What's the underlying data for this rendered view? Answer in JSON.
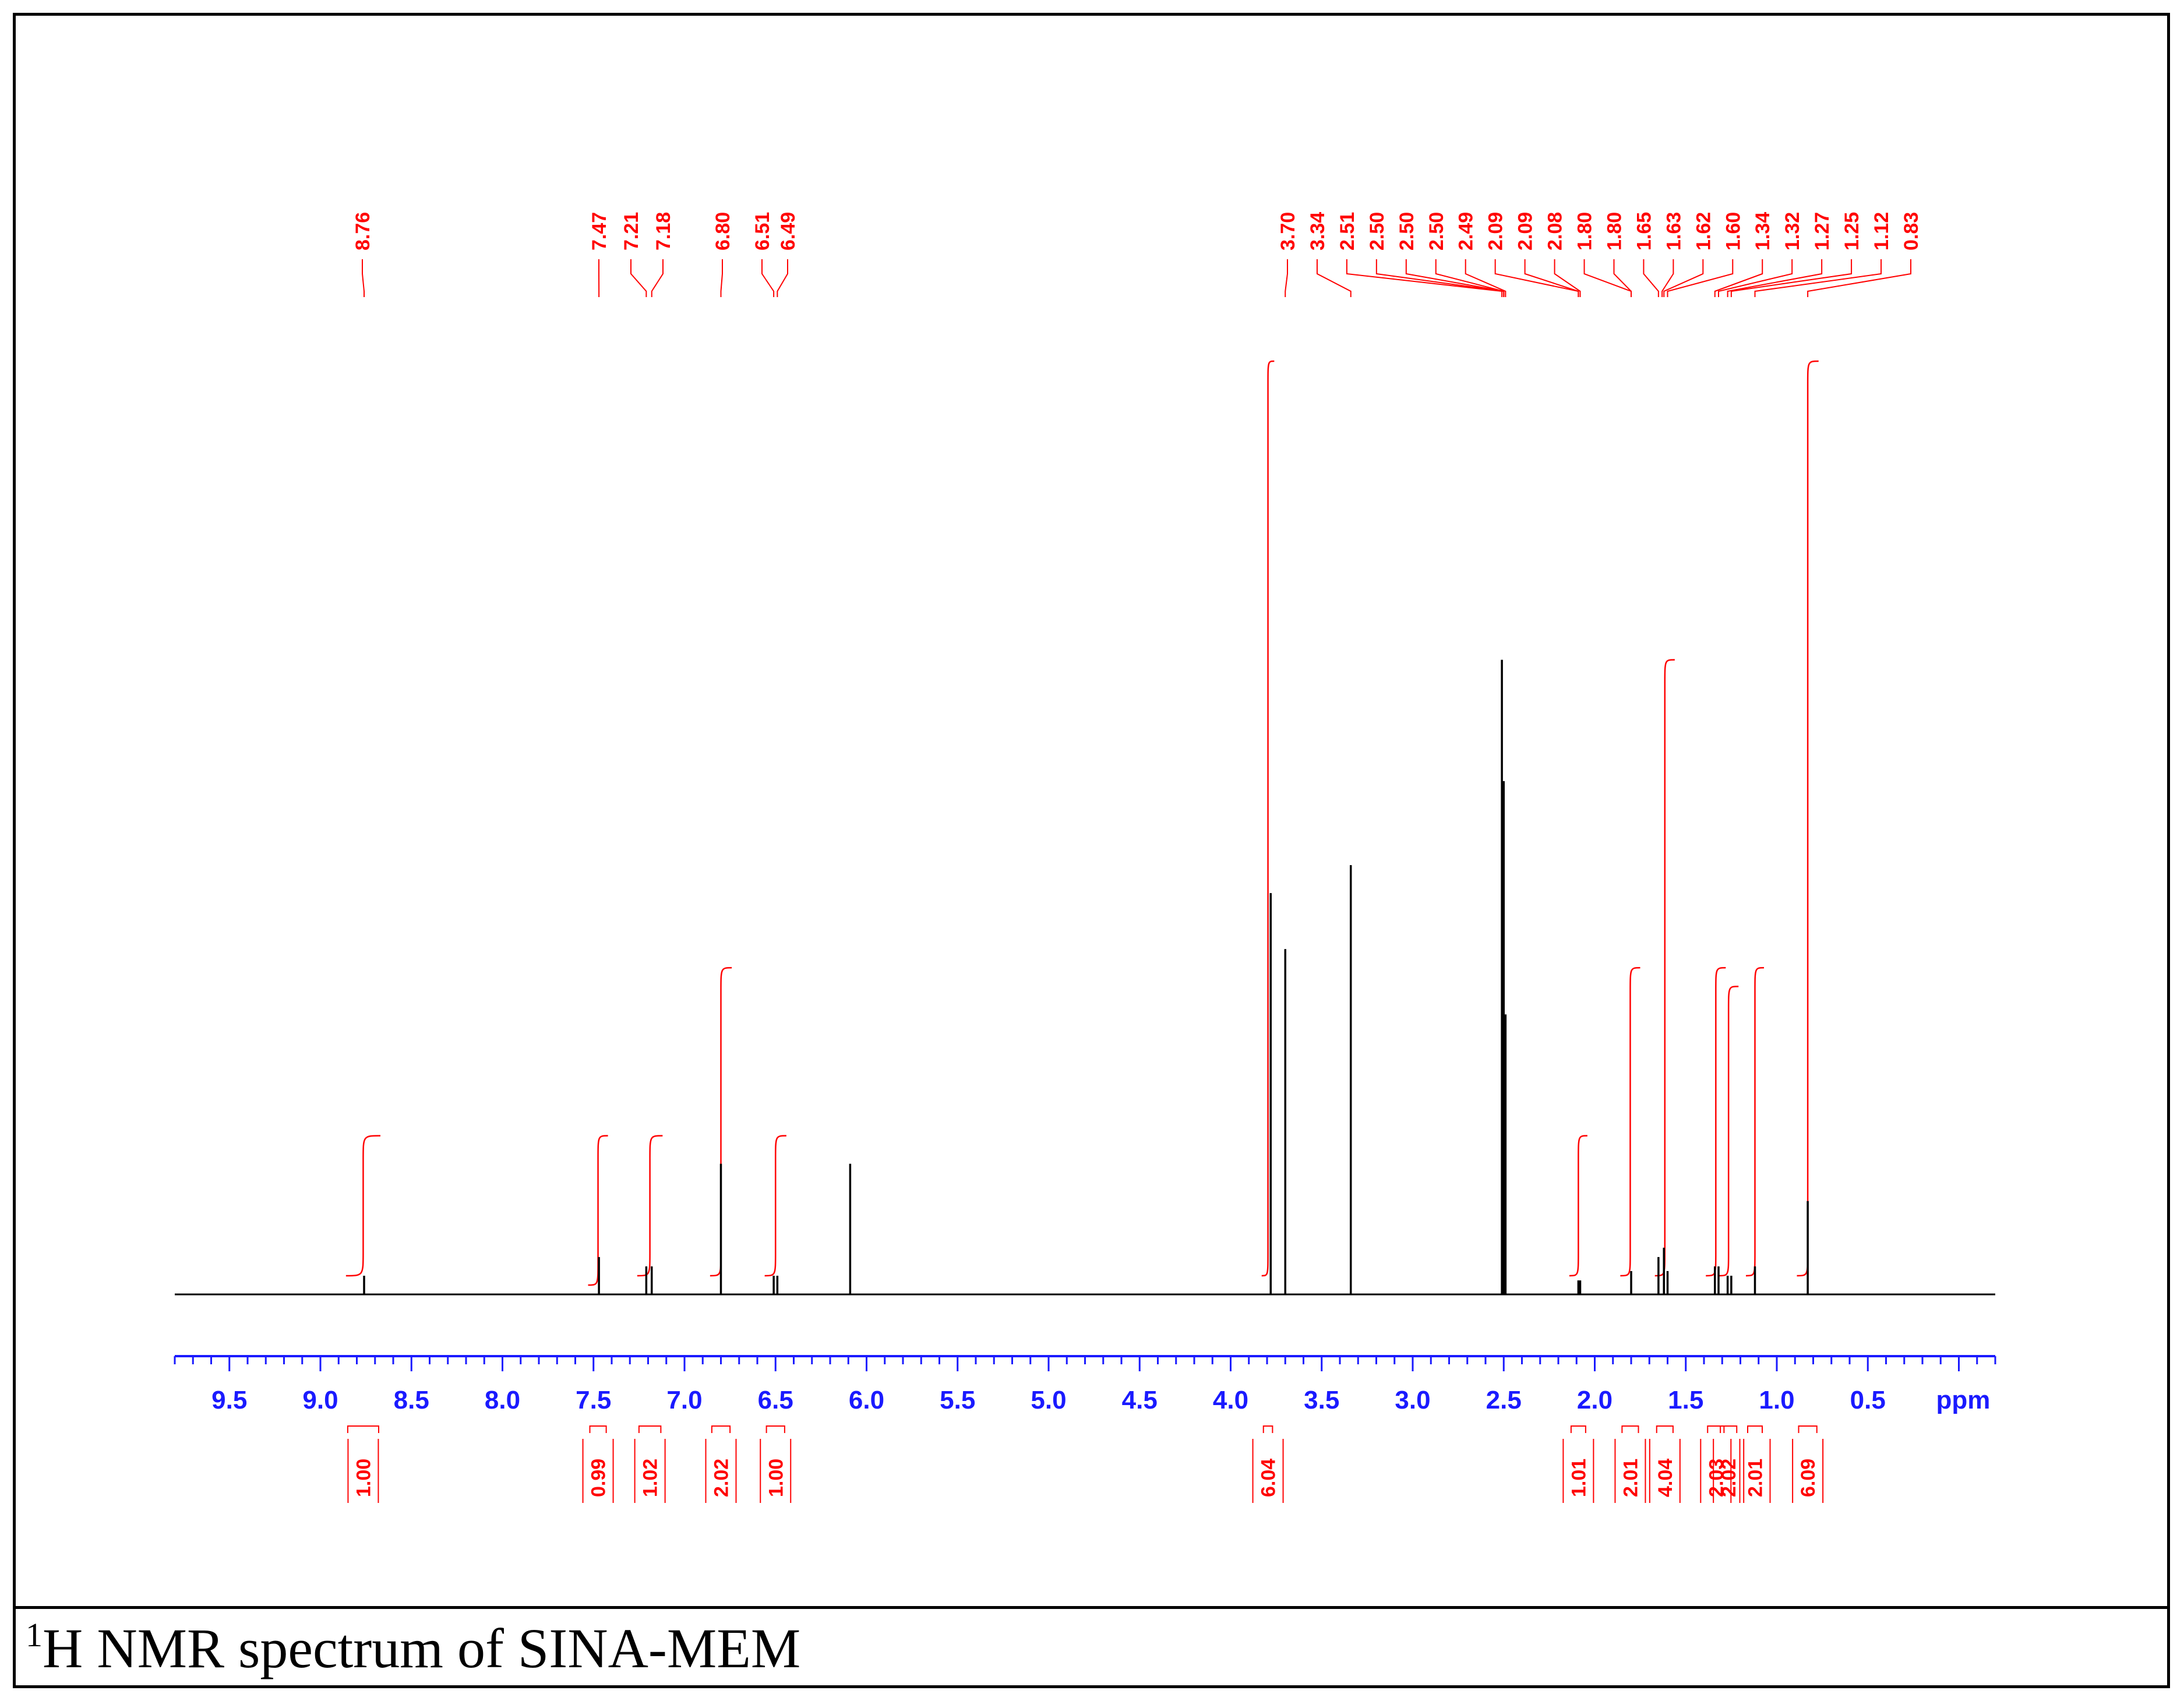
{
  "caption": {
    "sup": "1",
    "text": "H NMR spectrum of SINA-MEM"
  },
  "colors": {
    "spectrum": "#000000",
    "annotation": "#ff0000",
    "axis": "#1a1aff",
    "frame": "#000000"
  },
  "chart_data": {
    "type": "line",
    "xlabel": "ppm",
    "xlim": [
      9.8,
      -0.2
    ],
    "reversed_x": true,
    "x_ticks": [
      {
        "v": 9.5,
        "t": "9.5"
      },
      {
        "v": 9.0,
        "t": "9.0"
      },
      {
        "v": 8.5,
        "t": "8.5"
      },
      {
        "v": 8.0,
        "t": "8.0"
      },
      {
        "v": 7.5,
        "t": "7.5"
      },
      {
        "v": 7.0,
        "t": "7.0"
      },
      {
        "v": 6.5,
        "t": "6.5"
      },
      {
        "v": 6.0,
        "t": "6.0"
      },
      {
        "v": 5.5,
        "t": "5.5"
      },
      {
        "v": 5.0,
        "t": "5.0"
      },
      {
        "v": 4.5,
        "t": "4.5"
      },
      {
        "v": 4.0,
        "t": "4.0"
      },
      {
        "v": 3.5,
        "t": "3.5"
      },
      {
        "v": 3.0,
        "t": "3.0"
      },
      {
        "v": 2.5,
        "t": "2.5"
      },
      {
        "v": 2.0,
        "t": "2.0"
      },
      {
        "v": 1.5,
        "t": "1.5"
      },
      {
        "v": 1.0,
        "t": "1.0"
      },
      {
        "v": 0.5,
        "t": "0.5"
      }
    ],
    "peak_labels": [
      "8.76",
      "7.47",
      "7.21",
      "7.18",
      "6.80",
      "6.51",
      "6.49",
      "3.70",
      "3.34",
      "2.51",
      "2.50",
      "2.50",
      "2.50",
      "2.49",
      "2.09",
      "2.09",
      "2.08",
      "1.80",
      "1.80",
      "1.65",
      "1.63",
      "1.62",
      "1.60",
      "1.34",
      "1.32",
      "1.27",
      "1.25",
      "1.12",
      "0.83"
    ],
    "peaks": [
      {
        "ppm": 8.76,
        "h": 0.02
      },
      {
        "ppm": 7.47,
        "h": 0.04
      },
      {
        "ppm": 7.21,
        "h": 0.03
      },
      {
        "ppm": 7.18,
        "h": 0.03
      },
      {
        "ppm": 6.8,
        "h": 0.14
      },
      {
        "ppm": 6.51,
        "h": 0.02
      },
      {
        "ppm": 6.49,
        "h": 0.02
      },
      {
        "ppm": 6.09,
        "h": 0.14
      },
      {
        "ppm": 3.78,
        "h": 0.43
      },
      {
        "ppm": 3.7,
        "h": 0.37
      },
      {
        "ppm": 3.34,
        "h": 0.46
      },
      {
        "ppm": 2.51,
        "h": 0.68
      },
      {
        "ppm": 2.5,
        "h": 0.55
      },
      {
        "ppm": 2.49,
        "h": 0.3
      },
      {
        "ppm": 2.09,
        "h": 0.015
      },
      {
        "ppm": 2.08,
        "h": 0.015
      },
      {
        "ppm": 1.8,
        "h": 0.025
      },
      {
        "ppm": 1.65,
        "h": 0.04
      },
      {
        "ppm": 1.62,
        "h": 0.05
      },
      {
        "ppm": 1.6,
        "h": 0.025
      },
      {
        "ppm": 1.34,
        "h": 0.03
      },
      {
        "ppm": 1.32,
        "h": 0.03
      },
      {
        "ppm": 1.27,
        "h": 0.02
      },
      {
        "ppm": 1.25,
        "h": 0.02
      },
      {
        "ppm": 1.12,
        "h": 0.03
      },
      {
        "ppm": 0.83,
        "h": 0.1
      }
    ],
    "integrals": [
      {
        "from": 8.85,
        "to": 8.68,
        "value": "1.00",
        "top": 0.17,
        "rise": 0.15
      },
      {
        "from": 7.52,
        "to": 7.43,
        "value": "0.99",
        "top": 0.17,
        "rise": 0.16
      },
      {
        "from": 7.25,
        "to": 7.13,
        "value": "1.02",
        "top": 0.17,
        "rise": 0.15
      },
      {
        "from": 6.85,
        "to": 6.75,
        "value": "2.02",
        "top": 0.35,
        "rise": 0.33
      },
      {
        "from": 6.55,
        "to": 6.45,
        "value": "1.00",
        "top": 0.17,
        "rise": 0.15
      },
      {
        "from": 3.82,
        "to": 3.77,
        "value": "6.04",
        "top": 1.0,
        "rise": 0.98
      },
      {
        "from": 2.13,
        "to": 2.05,
        "value": "1.01",
        "top": 0.17,
        "rise": 0.15
      },
      {
        "from": 1.85,
        "to": 1.76,
        "value": "2.01",
        "top": 0.35,
        "rise": 0.33
      },
      {
        "from": 1.66,
        "to": 1.57,
        "value": "4.04",
        "top": 0.68,
        "rise": 0.66
      },
      {
        "from": 1.38,
        "to": 1.29,
        "value": "2.03",
        "top": 0.35,
        "rise": 0.33
      },
      {
        "from": 1.31,
        "to": 1.22,
        "value": "2.02",
        "top": 0.33,
        "rise": 0.31
      },
      {
        "from": 1.16,
        "to": 1.08,
        "value": "2.01",
        "top": 0.35,
        "rise": 0.33
      },
      {
        "from": 0.88,
        "to": 0.78,
        "value": "6.09",
        "top": 1.0,
        "rise": 0.98
      }
    ]
  }
}
